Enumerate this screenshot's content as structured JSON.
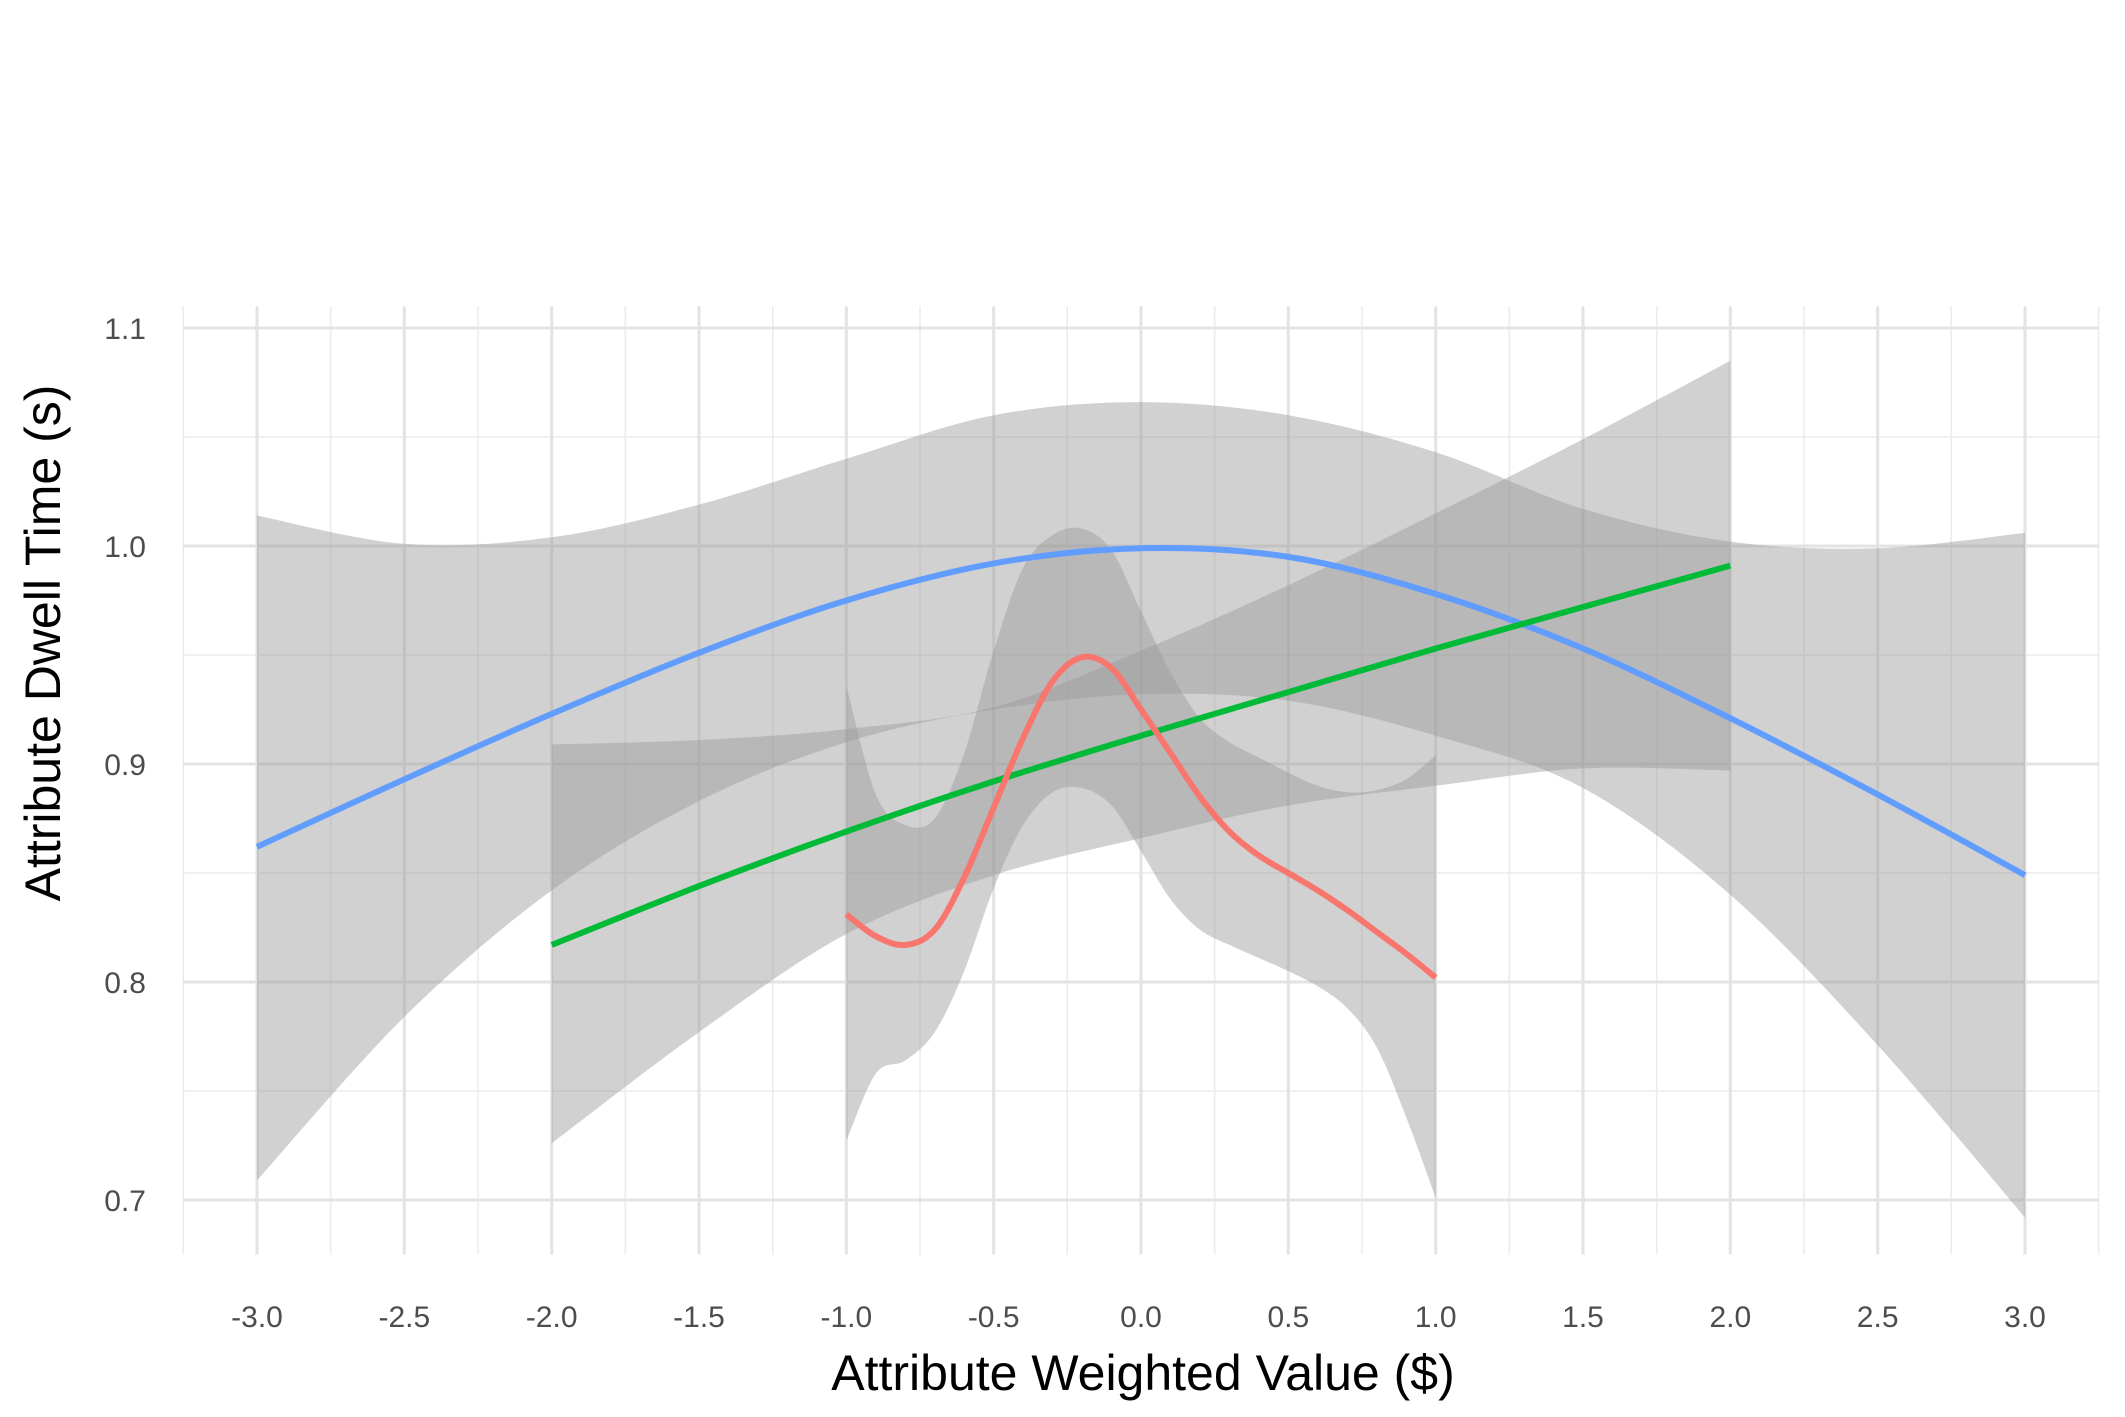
{
  "chart_data": {
    "type": "line",
    "title": "",
    "xlabel": "Attribute Weighted Value ($)",
    "ylabel": "Attribute Dwell Time (s)",
    "xlim": [
      -3.25,
      3.25
    ],
    "ylim": [
      0.675,
      1.105
    ],
    "x_ticks": [
      -3.0,
      -2.5,
      -2.0,
      -1.5,
      -1.0,
      -0.5,
      0.0,
      0.5,
      1.0,
      1.5,
      2.0,
      2.5,
      3.0
    ],
    "x_tick_labels": [
      "-3.0",
      "-2.5",
      "-2.0",
      "-1.5",
      "-1.0",
      "-0.5",
      "0.0",
      "0.5",
      "1.0",
      "1.5",
      "2.0",
      "2.5",
      "3.0"
    ],
    "y_ticks": [
      0.7,
      0.8,
      0.9,
      1.0,
      1.1
    ],
    "y_tick_labels": [
      "0.7",
      "0.8",
      "0.9",
      "1.0",
      "1.1"
    ],
    "grid": true,
    "legend": "none",
    "band_color": "#999999",
    "series": [
      {
        "color": "#619cff",
        "line": [
          [
            -3.0,
            0.862
          ],
          [
            -2.5,
            0.893
          ],
          [
            -2.0,
            0.923
          ],
          [
            -1.5,
            0.951
          ],
          [
            -1.0,
            0.975
          ],
          [
            -0.5,
            0.992
          ],
          [
            0.0,
            0.999
          ],
          [
            0.5,
            0.995
          ],
          [
            1.0,
            0.978
          ],
          [
            1.5,
            0.953
          ],
          [
            2.0,
            0.921
          ],
          [
            2.5,
            0.886
          ],
          [
            3.0,
            0.849
          ]
        ],
        "band_upper": [
          [
            -3.0,
            1.014
          ],
          [
            -2.5,
            1.001
          ],
          [
            -2.0,
            1.004
          ],
          [
            -1.5,
            1.019
          ],
          [
            -1.0,
            1.04
          ],
          [
            -0.5,
            1.06
          ],
          [
            0.0,
            1.066
          ],
          [
            0.5,
            1.06
          ],
          [
            1.0,
            1.043
          ],
          [
            1.5,
            1.017
          ],
          [
            2.0,
            1.002
          ],
          [
            2.5,
            0.999
          ],
          [
            3.0,
            1.006
          ]
        ],
        "band_lower": [
          [
            -3.0,
            0.709
          ],
          [
            -2.5,
            0.784
          ],
          [
            -2.0,
            0.842
          ],
          [
            -1.5,
            0.883
          ],
          [
            -1.0,
            0.91
          ],
          [
            -0.5,
            0.925
          ],
          [
            0.0,
            0.932
          ],
          [
            0.5,
            0.929
          ],
          [
            1.0,
            0.913
          ],
          [
            1.5,
            0.889
          ],
          [
            2.0,
            0.84
          ],
          [
            2.5,
            0.771
          ],
          [
            3.0,
            0.692
          ]
        ]
      },
      {
        "color": "#00ba38",
        "line": [
          [
            -2.0,
            0.817
          ],
          [
            -1.5,
            0.844
          ],
          [
            -1.0,
            0.869
          ],
          [
            -0.5,
            0.892
          ],
          [
            0.0,
            0.913
          ],
          [
            0.5,
            0.933
          ],
          [
            1.0,
            0.953
          ],
          [
            1.5,
            0.972
          ],
          [
            2.0,
            0.991
          ]
        ],
        "band_upper": [
          [
            -2.0,
            0.909
          ],
          [
            -1.5,
            0.911
          ],
          [
            -1.0,
            0.916
          ],
          [
            -0.5,
            0.926
          ],
          [
            0.0,
            0.952
          ],
          [
            0.5,
            0.982
          ],
          [
            1.0,
            1.015
          ],
          [
            1.5,
            1.049
          ],
          [
            2.0,
            1.085
          ]
        ],
        "band_lower": [
          [
            -2.0,
            0.726
          ],
          [
            -1.5,
            0.777
          ],
          [
            -1.0,
            0.822
          ],
          [
            -0.5,
            0.849
          ],
          [
            0.0,
            0.866
          ],
          [
            0.5,
            0.881
          ],
          [
            1.0,
            0.89
          ],
          [
            1.5,
            0.898
          ],
          [
            2.0,
            0.897
          ]
        ]
      },
      {
        "color": "#f8766d",
        "line": [
          [
            -1.0,
            0.831
          ],
          [
            -0.9,
            0.821
          ],
          [
            -0.8,
            0.817
          ],
          [
            -0.7,
            0.824
          ],
          [
            -0.6,
            0.848
          ],
          [
            -0.5,
            0.88
          ],
          [
            -0.4,
            0.912
          ],
          [
            -0.3,
            0.938
          ],
          [
            -0.2,
            0.949
          ],
          [
            -0.1,
            0.944
          ],
          [
            0.0,
            0.925
          ],
          [
            0.1,
            0.905
          ],
          [
            0.2,
            0.885
          ],
          [
            0.3,
            0.869
          ],
          [
            0.4,
            0.858
          ],
          [
            0.5,
            0.85
          ],
          [
            0.6,
            0.842
          ],
          [
            0.7,
            0.833
          ],
          [
            0.8,
            0.823
          ],
          [
            0.9,
            0.813
          ],
          [
            1.0,
            0.802
          ]
        ],
        "band_upper": [
          [
            -1.0,
            0.936
          ],
          [
            -0.9,
            0.886
          ],
          [
            -0.8,
            0.872
          ],
          [
            -0.7,
            0.875
          ],
          [
            -0.6,
            0.905
          ],
          [
            -0.5,
            0.952
          ],
          [
            -0.4,
            0.99
          ],
          [
            -0.3,
            1.005
          ],
          [
            -0.2,
            1.008
          ],
          [
            -0.1,
            0.998
          ],
          [
            0.0,
            0.97
          ],
          [
            0.1,
            0.942
          ],
          [
            0.2,
            0.921
          ],
          [
            0.3,
            0.91
          ],
          [
            0.4,
            0.903
          ],
          [
            0.5,
            0.896
          ],
          [
            0.6,
            0.89
          ],
          [
            0.7,
            0.887
          ],
          [
            0.8,
            0.888
          ],
          [
            0.9,
            0.893
          ],
          [
            1.0,
            0.904
          ]
        ],
        "band_lower": [
          [
            -1.0,
            0.727
          ],
          [
            -0.9,
            0.758
          ],
          [
            -0.8,
            0.764
          ],
          [
            -0.7,
            0.777
          ],
          [
            -0.6,
            0.805
          ],
          [
            -0.5,
            0.843
          ],
          [
            -0.4,
            0.872
          ],
          [
            -0.3,
            0.887
          ],
          [
            -0.2,
            0.889
          ],
          [
            -0.1,
            0.881
          ],
          [
            0.0,
            0.86
          ],
          [
            0.1,
            0.838
          ],
          [
            0.2,
            0.824
          ],
          [
            0.3,
            0.817
          ],
          [
            0.4,
            0.811
          ],
          [
            0.5,
            0.805
          ],
          [
            0.6,
            0.798
          ],
          [
            0.7,
            0.788
          ],
          [
            0.8,
            0.77
          ],
          [
            0.9,
            0.738
          ],
          [
            1.0,
            0.701
          ]
        ]
      }
    ]
  }
}
